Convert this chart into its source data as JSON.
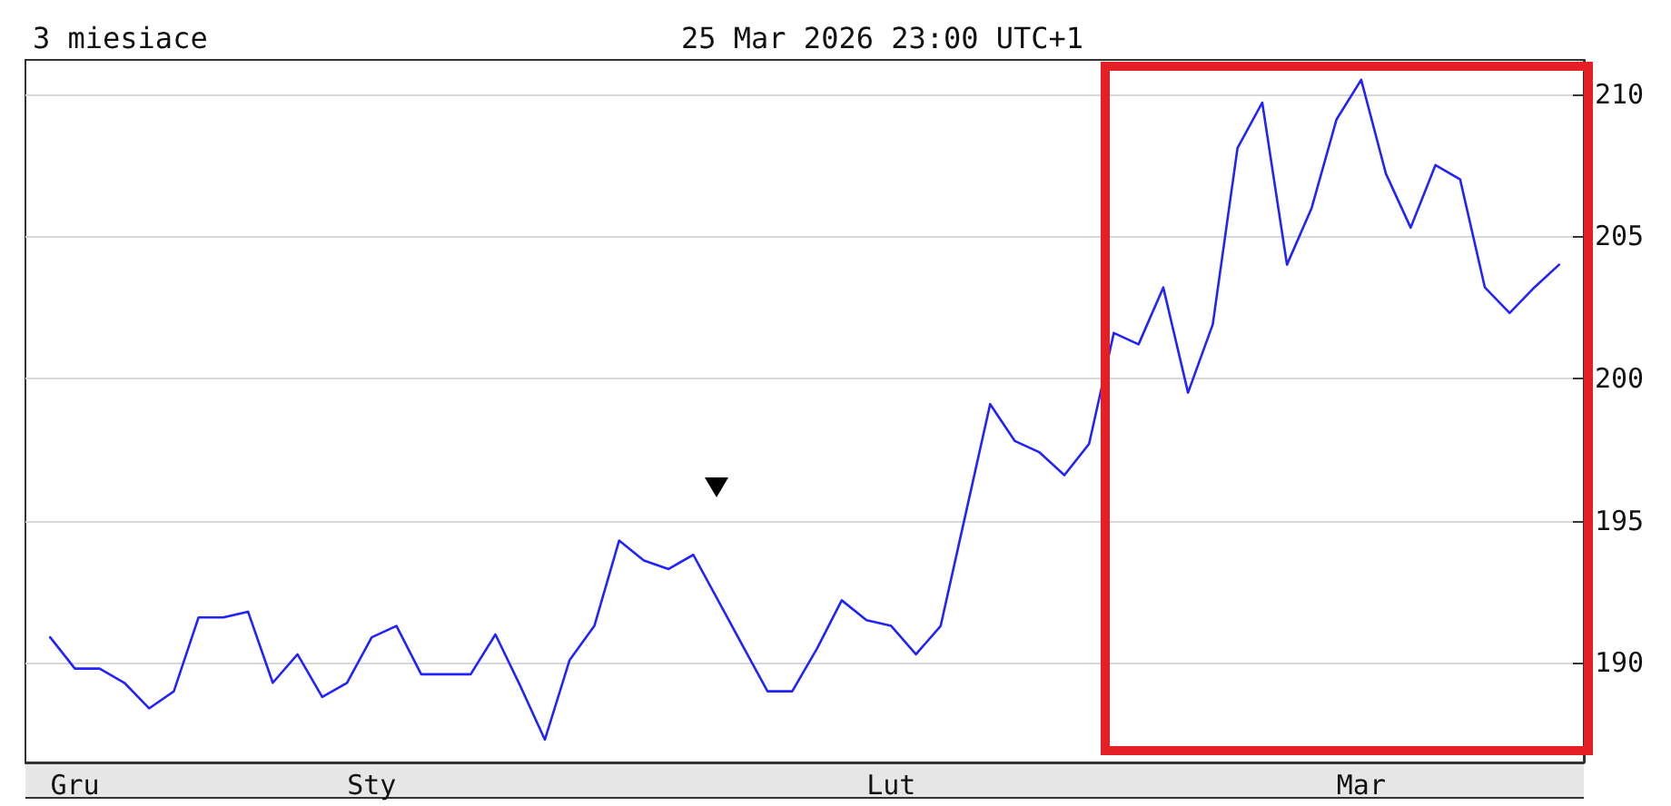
{
  "chart_data": {
    "type": "line",
    "title": "3 miesiace",
    "subtitle": "25 Mar 2026 23:00 UTC+1",
    "categories": [
      null,
      "Gru",
      null,
      null,
      null,
      null,
      null,
      null,
      null,
      null,
      null,
      null,
      null,
      "Sty",
      null,
      null,
      null,
      null,
      null,
      null,
      null,
      null,
      null,
      null,
      null,
      null,
      null,
      null,
      null,
      null,
      null,
      null,
      null,
      null,
      "Lut",
      null,
      null,
      null,
      null,
      null,
      null,
      null,
      null,
      null,
      null,
      null,
      null,
      null,
      null,
      null,
      null,
      null,
      null,
      "Mar",
      null,
      null,
      null,
      null,
      null,
      null,
      null,
      null
    ],
    "values": [
      190.9,
      189.8,
      189.8,
      189.3,
      188.4,
      189.0,
      191.6,
      191.6,
      191.8,
      189.3,
      190.3,
      188.8,
      189.3,
      190.9,
      191.3,
      189.6,
      189.6,
      189.6,
      191.0,
      189.2,
      187.3,
      190.1,
      191.3,
      194.3,
      193.6,
      193.3,
      193.8,
      192.2,
      190.6,
      189.0,
      189.0,
      190.5,
      192.2,
      191.5,
      191.3,
      190.3,
      191.3,
      195.2,
      199.1,
      197.8,
      197.4,
      196.6,
      197.7,
      201.6,
      201.2,
      203.2,
      199.5,
      201.9,
      208.1,
      209.7,
      204.0,
      206.0,
      209.1,
      210.5,
      207.2,
      205.3,
      207.5,
      207.0,
      203.2,
      202.3,
      203.2,
      204.0
    ],
    "color": "#2222ff",
    "ylim": [
      186.5,
      211.2
    ],
    "yticks": [
      190,
      195,
      200,
      205,
      210
    ],
    "grid": "y",
    "marker": "none",
    "line_style": "solid"
  }
}
